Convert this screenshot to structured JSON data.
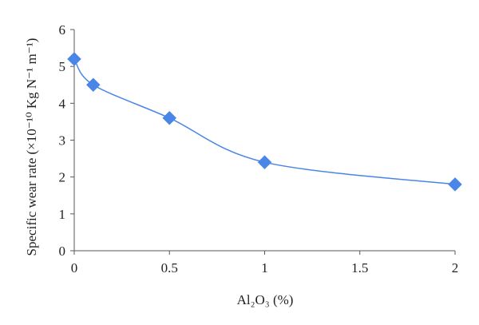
{
  "chart_data": {
    "type": "line",
    "title": "",
    "xlabel": "Al₂O₃ (%)",
    "ylabel": "Specific wear rate (×10⁻¹⁰ Kg N⁻¹ m⁻¹)",
    "xlim": [
      0,
      2
    ],
    "ylim": [
      0,
      6
    ],
    "xticks": [
      "0",
      "0.5",
      "1",
      "1.5",
      "2"
    ],
    "yticks": [
      "0",
      "1",
      "2",
      "3",
      "4",
      "5",
      "6"
    ],
    "grid": false,
    "legend": "none",
    "series": [
      {
        "color": "#4a86e8",
        "marker": "diamond",
        "smooth": true,
        "points": [
          {
            "x": 0,
            "y": 5.2
          },
          {
            "x": 0.1,
            "y": 4.5
          },
          {
            "x": 0.5,
            "y": 3.6
          },
          {
            "x": 1,
            "y": 2.4
          },
          {
            "x": 2,
            "y": 1.8
          }
        ]
      }
    ]
  }
}
